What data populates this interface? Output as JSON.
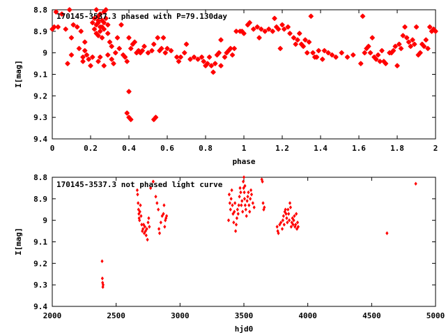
{
  "chart_data": [
    {
      "type": "scatter",
      "title": "170145-3537.3 phased with P=79.130day",
      "xlabel": "phase",
      "ylabel": "I[mag]",
      "xlim": [
        0,
        2
      ],
      "ylim": [
        8.8,
        9.4
      ],
      "y_inverted": true,
      "xticks": [
        "0",
        "0.2",
        "0.4",
        "0.6",
        "0.8",
        "1",
        "1.2",
        "1.4",
        "1.6",
        "1.8",
        "2"
      ],
      "yticks": [
        "8.8",
        "8.9",
        "9",
        "9.1",
        "9.2",
        "9.3",
        "9.4"
      ],
      "marker": "star",
      "color": "#ff0000",
      "points": [
        [
          0.0,
          8.89
        ],
        [
          0.01,
          8.88
        ],
        [
          0.02,
          8.81
        ],
        [
          0.03,
          8.88
        ],
        [
          0.05,
          8.82
        ],
        [
          0.07,
          8.89
        ],
        [
          0.09,
          8.8
        ],
        [
          0.08,
          9.05
        ],
        [
          0.1,
          8.93
        ],
        [
          0.1,
          9.01
        ],
        [
          0.11,
          8.87
        ],
        [
          0.13,
          8.88
        ],
        [
          0.14,
          8.98
        ],
        [
          0.15,
          8.9
        ],
        [
          0.16,
          9.02
        ],
        [
          0.16,
          9.04
        ],
        [
          0.17,
          8.95
        ],
        [
          0.17,
          8.99
        ],
        [
          0.18,
          9.01
        ],
        [
          0.19,
          9.03
        ],
        [
          0.2,
          9.06
        ],
        [
          0.21,
          9.02
        ],
        [
          0.21,
          8.86
        ],
        [
          0.22,
          8.84
        ],
        [
          0.23,
          8.87
        ],
        [
          0.24,
          8.83
        ],
        [
          0.24,
          8.86
        ],
        [
          0.25,
          8.82
        ],
        [
          0.25,
          8.88
        ],
        [
          0.26,
          8.85
        ],
        [
          0.27,
          8.81
        ],
        [
          0.27,
          8.89
        ],
        [
          0.28,
          8.84
        ],
        [
          0.29,
          8.87
        ],
        [
          0.24,
          8.92
        ],
        [
          0.26,
          8.93
        ],
        [
          0.23,
          8.8
        ],
        [
          0.28,
          8.8
        ],
        [
          0.22,
          8.89
        ],
        [
          0.25,
          8.9
        ],
        [
          0.26,
          8.88
        ],
        [
          0.24,
          8.85
        ],
        [
          0.27,
          8.86
        ],
        [
          0.23,
          8.91
        ],
        [
          0.29,
          8.91
        ],
        [
          0.24,
          9.04
        ],
        [
          0.25,
          9.02
        ],
        [
          0.27,
          9.06
        ],
        [
          0.29,
          9.01
        ],
        [
          0.3,
          8.95
        ],
        [
          0.31,
          8.97
        ],
        [
          0.31,
          9.03
        ],
        [
          0.32,
          9.05
        ],
        [
          0.33,
          9.0
        ],
        [
          0.34,
          8.93
        ],
        [
          0.35,
          8.98
        ],
        [
          0.36,
          8.87
        ],
        [
          0.37,
          9.01
        ],
        [
          0.38,
          9.02
        ],
        [
          0.39,
          9.04
        ],
        [
          0.4,
          9.18
        ],
        [
          0.39,
          9.28
        ],
        [
          0.4,
          9.3
        ],
        [
          0.41,
          9.31
        ],
        [
          0.4,
          8.93
        ],
        [
          0.41,
          8.98
        ],
        [
          0.42,
          8.96
        ],
        [
          0.43,
          8.95
        ],
        [
          0.44,
          9.0
        ],
        [
          0.45,
          8.99
        ],
        [
          0.46,
          9.0
        ],
        [
          0.47,
          8.99
        ],
        [
          0.48,
          8.97
        ],
        [
          0.5,
          9.0
        ],
        [
          0.52,
          8.99
        ],
        [
          0.53,
          9.31
        ],
        [
          0.54,
          9.3
        ],
        [
          0.53,
          8.96
        ],
        [
          0.55,
          8.93
        ],
        [
          0.56,
          8.99
        ],
        [
          0.57,
          8.98
        ],
        [
          0.58,
          8.93
        ],
        [
          0.59,
          9.0
        ],
        [
          0.6,
          8.98
        ],
        [
          0.62,
          8.99
        ],
        [
          0.65,
          9.02
        ],
        [
          0.66,
          9.04
        ],
        [
          0.67,
          9.02
        ],
        [
          0.69,
          9.0
        ],
        [
          0.7,
          8.96
        ],
        [
          0.72,
          9.03
        ],
        [
          0.74,
          9.02
        ],
        [
          0.76,
          9.03
        ],
        [
          0.78,
          9.02
        ],
        [
          0.79,
          9.04
        ],
        [
          0.8,
          9.06
        ],
        [
          0.81,
          9.05
        ],
        [
          0.82,
          9.02
        ],
        [
          0.83,
          9.06
        ],
        [
          0.84,
          9.09
        ],
        [
          0.85,
          9.05
        ],
        [
          0.86,
          9.01
        ],
        [
          0.87,
          9.0
        ],
        [
          0.88,
          9.06
        ],
        [
          0.88,
          8.94
        ],
        [
          0.9,
          9.02
        ],
        [
          0.91,
          9.0
        ],
        [
          0.92,
          8.99
        ],
        [
          0.93,
          8.98
        ],
        [
          0.94,
          9.01
        ],
        [
          0.95,
          8.98
        ],
        [
          0.96,
          8.9
        ],
        [
          0.98,
          8.9
        ],
        [
          0.99,
          8.9
        ],
        [
          1.0,
          8.91
        ],
        [
          1.02,
          8.87
        ],
        [
          1.03,
          8.86
        ],
        [
          1.05,
          8.89
        ],
        [
          1.07,
          8.88
        ],
        [
          1.08,
          8.93
        ],
        [
          1.09,
          8.89
        ],
        [
          1.11,
          8.9
        ],
        [
          1.13,
          8.89
        ],
        [
          1.15,
          8.9
        ],
        [
          1.16,
          8.84
        ],
        [
          1.17,
          8.88
        ],
        [
          1.18,
          8.89
        ],
        [
          1.19,
          8.98
        ],
        [
          1.2,
          8.87
        ],
        [
          1.21,
          8.89
        ],
        [
          1.23,
          8.88
        ],
        [
          1.24,
          8.91
        ],
        [
          1.26,
          8.93
        ],
        [
          1.27,
          8.96
        ],
        [
          1.28,
          8.94
        ],
        [
          1.29,
          8.91
        ],
        [
          1.3,
          8.96
        ],
        [
          1.31,
          8.97
        ],
        [
          1.32,
          8.94
        ],
        [
          1.33,
          9.0
        ],
        [
          1.34,
          8.95
        ],
        [
          1.35,
          8.83
        ],
        [
          1.36,
          9.0
        ],
        [
          1.37,
          9.02
        ],
        [
          1.38,
          9.02
        ],
        [
          1.39,
          8.99
        ],
        [
          1.41,
          9.03
        ],
        [
          1.42,
          8.99
        ],
        [
          1.44,
          9.0
        ],
        [
          1.46,
          9.01
        ],
        [
          1.48,
          9.02
        ],
        [
          1.51,
          9.0
        ],
        [
          1.54,
          9.02
        ],
        [
          1.57,
          9.01
        ],
        [
          1.61,
          9.05
        ],
        [
          1.62,
          8.83
        ],
        [
          1.63,
          9.0
        ],
        [
          1.64,
          8.98
        ],
        [
          1.65,
          8.97
        ],
        [
          1.66,
          9.0
        ],
        [
          1.67,
          8.93
        ],
        [
          1.68,
          9.02
        ],
        [
          1.69,
          9.03
        ],
        [
          1.7,
          9.01
        ],
        [
          1.71,
          9.04
        ],
        [
          1.72,
          8.99
        ],
        [
          1.73,
          9.04
        ],
        [
          1.74,
          9.05
        ],
        [
          1.76,
          9.0
        ],
        [
          1.77,
          9.0
        ],
        [
          1.78,
          8.99
        ],
        [
          1.79,
          8.97
        ],
        [
          1.8,
          9.06
        ],
        [
          1.81,
          8.96
        ],
        [
          1.82,
          8.98
        ],
        [
          1.83,
          8.92
        ],
        [
          1.84,
          8.88
        ],
        [
          1.85,
          8.93
        ],
        [
          1.86,
          8.95
        ],
        [
          1.87,
          8.97
        ],
        [
          1.88,
          8.94
        ],
        [
          1.89,
          8.96
        ],
        [
          1.9,
          8.88
        ],
        [
          1.91,
          9.01
        ],
        [
          1.92,
          9.0
        ],
        [
          1.93,
          8.96
        ],
        [
          1.94,
          8.97
        ],
        [
          1.95,
          8.94
        ],
        [
          1.96,
          8.98
        ],
        [
          1.97,
          8.88
        ],
        [
          1.98,
          8.9
        ],
        [
          1.99,
          8.89
        ],
        [
          2.0,
          8.9
        ]
      ]
    },
    {
      "type": "scatter",
      "title": "170145-3537.3 not phased light curve",
      "xlabel": "hjd0",
      "ylabel": "I[mag]",
      "xlim": [
        2000,
        5000
      ],
      "ylim": [
        8.8,
        9.4
      ],
      "y_inverted": true,
      "xticks": [
        "2000",
        "2500",
        "3000",
        "3500",
        "4000",
        "4500",
        "5000"
      ],
      "yticks": [
        "8.8",
        "8.9",
        "9",
        "9.1",
        "9.2",
        "9.3",
        "9.4"
      ],
      "marker": "diamond",
      "color": "#ff0000",
      "points": [
        [
          2390,
          9.19
        ],
        [
          2392,
          9.27
        ],
        [
          2394,
          9.29
        ],
        [
          2396,
          9.31
        ],
        [
          2398,
          9.3
        ],
        [
          2665,
          8.86
        ],
        [
          2668,
          8.88
        ],
        [
          2672,
          8.92
        ],
        [
          2675,
          8.95
        ],
        [
          2678,
          8.97
        ],
        [
          2680,
          8.99
        ],
        [
          2683,
          9.0
        ],
        [
          2686,
          8.96
        ],
        [
          2690,
          8.93
        ],
        [
          2695,
          8.98
        ],
        [
          2700,
          9.02
        ],
        [
          2705,
          9.05
        ],
        [
          2710,
          9.04
        ],
        [
          2715,
          9.02
        ],
        [
          2720,
          9.06
        ],
        [
          2725,
          9.03
        ],
        [
          2730,
          9.05
        ],
        [
          2735,
          9.07
        ],
        [
          2740,
          9.04
        ],
        [
          2745,
          9.09
        ],
        [
          2750,
          9.01
        ],
        [
          2755,
          8.99
        ],
        [
          2760,
          9.03
        ],
        [
          2770,
          8.85
        ],
        [
          2790,
          8.82
        ],
        [
          2810,
          8.89
        ],
        [
          2820,
          8.92
        ],
        [
          2830,
          8.95
        ],
        [
          2835,
          9.04
        ],
        [
          2840,
          9.06
        ],
        [
          2850,
          9.01
        ],
        [
          2860,
          8.98
        ],
        [
          2870,
          8.97
        ],
        [
          2875,
          8.93
        ],
        [
          2880,
          9.03
        ],
        [
          2885,
          9.0
        ],
        [
          2890,
          8.99
        ],
        [
          2895,
          8.98
        ],
        [
          3380,
          9.0
        ],
        [
          3385,
          8.88
        ],
        [
          3390,
          8.92
        ],
        [
          3395,
          8.95
        ],
        [
          3400,
          8.9
        ],
        [
          3405,
          8.86
        ],
        [
          3410,
          8.93
        ],
        [
          3415,
          8.97
        ],
        [
          3420,
          9.01
        ],
        [
          3425,
          8.96
        ],
        [
          3430,
          8.92
        ],
        [
          3435,
          9.05
        ],
        [
          3440,
          9.02
        ],
        [
          3445,
          8.99
        ],
        [
          3450,
          8.95
        ],
        [
          3455,
          8.97
        ],
        [
          3460,
          8.93
        ],
        [
          3465,
          8.89
        ],
        [
          3470,
          8.85
        ],
        [
          3475,
          8.87
        ],
        [
          3480,
          8.93
        ],
        [
          3485,
          8.91
        ],
        [
          3490,
          8.96
        ],
        [
          3495,
          8.82
        ],
        [
          3498,
          8.85
        ],
        [
          3500,
          8.8
        ],
        [
          3503,
          8.87
        ],
        [
          3505,
          8.9
        ],
        [
          3508,
          8.84
        ],
        [
          3510,
          8.93
        ],
        [
          3515,
          8.95
        ],
        [
          3520,
          8.98
        ],
        [
          3525,
          8.91
        ],
        [
          3530,
          8.89
        ],
        [
          3535,
          8.87
        ],
        [
          3540,
          8.93
        ],
        [
          3545,
          8.96
        ],
        [
          3550,
          8.9
        ],
        [
          3555,
          8.86
        ],
        [
          3560,
          8.88
        ],
        [
          3570,
          8.92
        ],
        [
          3580,
          8.94
        ],
        [
          3640,
          8.81
        ],
        [
          3645,
          8.82
        ],
        [
          3650,
          8.92
        ],
        [
          3655,
          8.95
        ],
        [
          3660,
          8.94
        ],
        [
          3760,
          9.03
        ],
        [
          3765,
          9.05
        ],
        [
          3770,
          9.06
        ],
        [
          3780,
          9.02
        ],
        [
          3790,
          9.01
        ],
        [
          3800,
          9.04
        ],
        [
          3805,
          9.0
        ],
        [
          3810,
          8.98
        ],
        [
          3815,
          9.02
        ],
        [
          3820,
          8.96
        ],
        [
          3825,
          8.95
        ],
        [
          3830,
          8.97
        ],
        [
          3835,
          8.99
        ],
        [
          3840,
          9.01
        ],
        [
          3845,
          8.95
        ],
        [
          3850,
          8.97
        ],
        [
          3855,
          9.0
        ],
        [
          3860,
          8.92
        ],
        [
          3865,
          8.94
        ],
        [
          3870,
          9.03
        ],
        [
          3875,
          9.01
        ],
        [
          3880,
          8.99
        ],
        [
          3885,
          9.02
        ],
        [
          3890,
          9.0
        ],
        [
          3895,
          8.98
        ],
        [
          3900,
          9.03
        ],
        [
          3905,
          9.02
        ],
        [
          3910,
          8.97
        ],
        [
          3915,
          9.04
        ],
        [
          3920,
          9.01
        ],
        [
          3925,
          9.03
        ],
        [
          4620,
          9.06
        ],
        [
          4845,
          8.83
        ]
      ]
    }
  ]
}
